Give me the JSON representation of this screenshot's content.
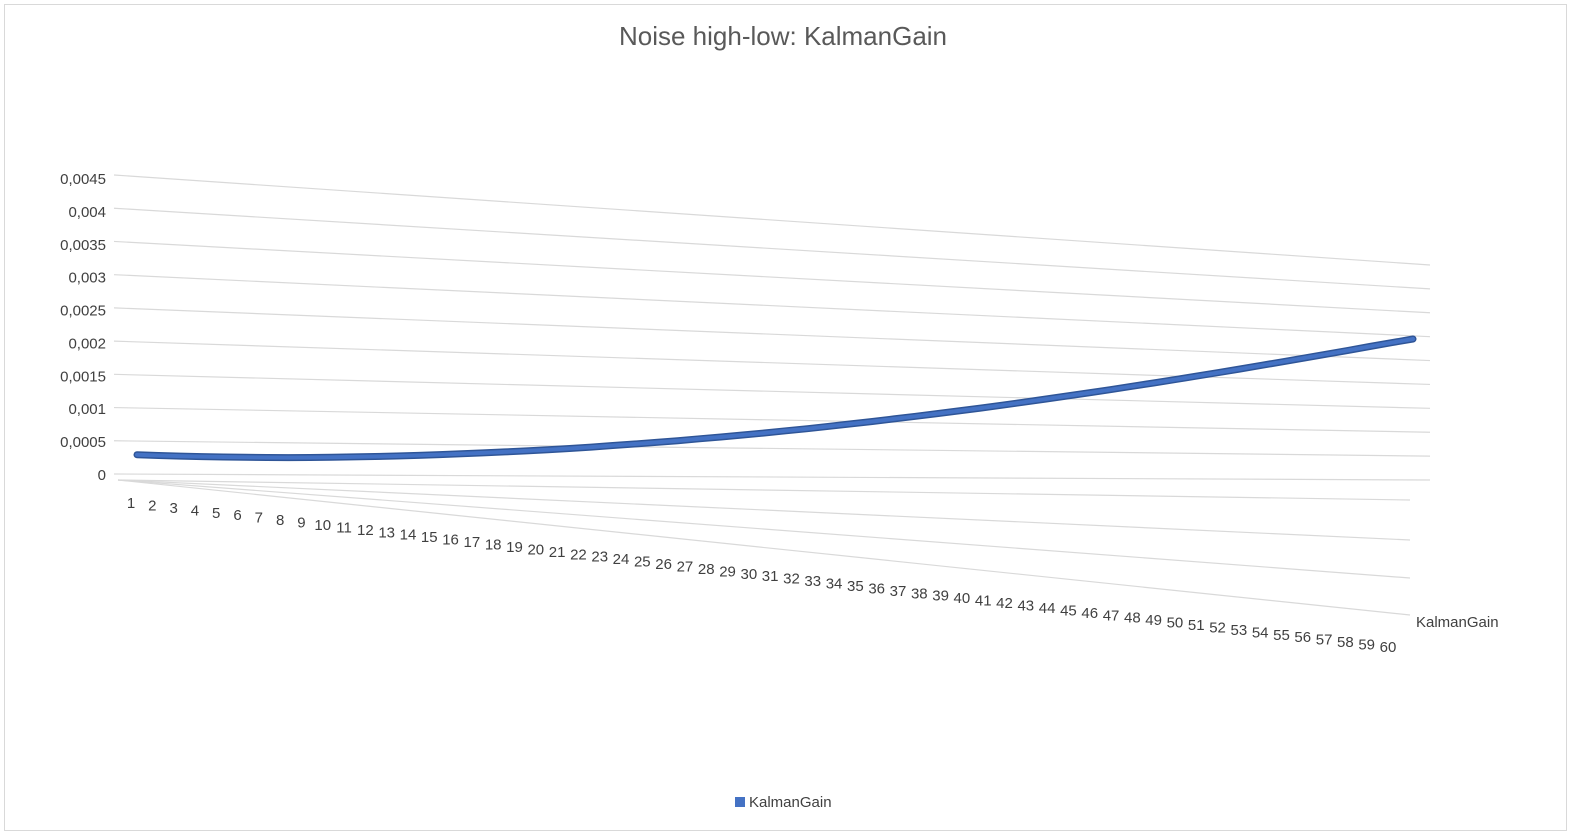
{
  "chart_data": {
    "type": "line",
    "title": "Noise high-low: KalmanGain",
    "xlabel": "",
    "ylabel": "",
    "categories": [
      1,
      2,
      3,
      4,
      5,
      6,
      7,
      8,
      9,
      10,
      11,
      12,
      13,
      14,
      15,
      16,
      17,
      18,
      19,
      20,
      21,
      22,
      23,
      24,
      25,
      26,
      27,
      28,
      29,
      30,
      31,
      32,
      33,
      34,
      35,
      36,
      37,
      38,
      39,
      40,
      41,
      42,
      43,
      44,
      45,
      46,
      47,
      48,
      49,
      50,
      51,
      52,
      53,
      54,
      55,
      56,
      57,
      58,
      59,
      60
    ],
    "y_ticks": [
      "0,0045",
      "0,004",
      "0,0035",
      "0,003",
      "0,0025",
      "0,002",
      "0,0015",
      "0,001",
      "0,0005",
      "0"
    ],
    "ylim": [
      0,
      0.0045
    ],
    "grid": true,
    "style": "3d-line",
    "legend_position": "bottom",
    "depth_label": "KalmanGain",
    "series": [
      {
        "name": "KalmanGain",
        "color": "#4472c4",
        "values": [
          0.000115,
          0.000111,
          0.000108,
          0.000106,
          0.000105,
          0.000104,
          0.000104,
          0.000105,
          0.000107,
          0.00011,
          0.000114,
          0.000118,
          0.000123,
          0.000129,
          0.000136,
          0.000143,
          0.000151,
          0.00016,
          0.000169,
          0.000179,
          0.00019,
          0.000202,
          0.000215,
          0.000228,
          0.000242,
          0.000257,
          0.000273,
          0.000289,
          0.000306,
          0.000324,
          0.000343,
          0.000362,
          0.000383,
          0.000404,
          0.000426,
          0.000449,
          0.000473,
          0.000497,
          0.000522,
          0.000548,
          0.000575,
          0.000603,
          0.000632,
          0.000661,
          0.000691,
          0.000722,
          0.000754,
          0.000787,
          0.00082,
          0.000855,
          0.00089,
          0.000926,
          0.000963,
          0.001,
          0.001039,
          0.001078,
          0.001118,
          0.001159,
          0.0012,
          0.00124
        ]
      }
    ]
  }
}
